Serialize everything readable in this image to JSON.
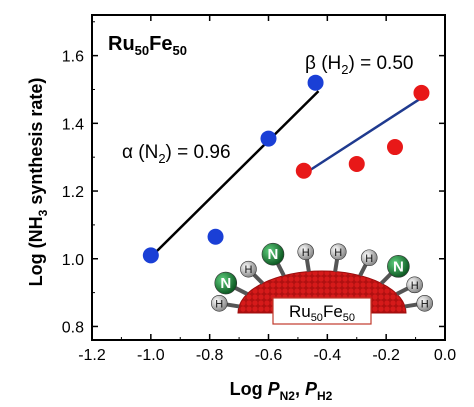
{
  "chart_data": {
    "type": "scatter",
    "title": "Ru50Fe50",
    "title_parts": {
      "base1": "Ru",
      "sub1": "50",
      "base2": "Fe",
      "sub2": "50"
    },
    "xlabel": "Log P_N2, P_H2",
    "xlabel_parts": {
      "prefix": "Log ",
      "p1": "P",
      "s1": "N2",
      "sep": ", ",
      "p2": "P",
      "s2": "H2"
    },
    "ylabel": "Log (NH3 synthesis rate)",
    "ylabel_parts": {
      "pre": "Log (NH",
      "sub": "3",
      "post": " synthesis rate)"
    },
    "xlim": [
      -1.2,
      0.0
    ],
    "ylim": [
      0.76,
      1.72
    ],
    "x_ticks": [
      -1.2,
      -1.0,
      -0.8,
      -0.6,
      -0.4,
      -0.2,
      0.0
    ],
    "x_tick_labels": [
      "-1.2",
      "-1.0",
      "-0.8",
      "-0.6",
      "-0.4",
      "-0.2",
      "0.0"
    ],
    "y_ticks": [
      0.8,
      1.0,
      1.2,
      1.4,
      1.6
    ],
    "y_tick_labels": [
      "0.8",
      "1.0",
      "1.2",
      "1.4",
      "1.6"
    ],
    "grid": false,
    "series": [
      {
        "color": "#1a3fd6",
        "points": [
          {
            "x": -1.0,
            "y": 1.01
          },
          {
            "x": -0.78,
            "y": 1.065
          },
          {
            "x": -0.6,
            "y": 1.355
          },
          {
            "x": -0.44,
            "y": 1.52
          }
        ],
        "fit": {
          "x": [
            -1.0,
            -0.43
          ],
          "y": [
            1.005,
            1.495
          ],
          "color": "#000000"
        }
      },
      {
        "color": "#e81818",
        "points": [
          {
            "x": -0.48,
            "y": 1.26
          },
          {
            "x": -0.3,
            "y": 1.28
          },
          {
            "x": -0.17,
            "y": 1.33
          },
          {
            "x": -0.08,
            "y": 1.49
          }
        ],
        "fit": {
          "x": [
            -0.48,
            -0.08
          ],
          "y": [
            1.25,
            1.475
          ],
          "color": "#1f3a8f"
        }
      }
    ],
    "annotations": {
      "alpha": {
        "text": "α (N₂) = 0.96",
        "pre": "α (N",
        "sub": "2",
        "post": ") = 0.96"
      },
      "beta": {
        "text": "β (H₂) = 0.50",
        "pre": "β (H",
        "sub": "2",
        "post": ") = 0.50"
      }
    }
  },
  "illustration": {
    "catalyst_label": "Ru50Fe50",
    "catalyst_parts": {
      "base1": "Ru",
      "sub1": "50",
      "base2": "Fe",
      "sub2": "50"
    },
    "atoms": [
      {
        "kind": "H",
        "label": "H"
      },
      {
        "kind": "N",
        "label": "N"
      },
      {
        "kind": "H",
        "label": "H"
      },
      {
        "kind": "N",
        "label": "N"
      },
      {
        "kind": "H",
        "label": "H"
      },
      {
        "kind": "H",
        "label": "H"
      },
      {
        "kind": "H",
        "label": "H"
      },
      {
        "kind": "N",
        "label": "N"
      },
      {
        "kind": "H",
        "label": "H"
      },
      {
        "kind": "H",
        "label": "H"
      }
    ],
    "colors": {
      "hydrogen": "#bdbdbd",
      "nitrogen": "#1f8a3a",
      "catalyst": "#d61a1a",
      "label_box_border": "#c0392b"
    }
  }
}
